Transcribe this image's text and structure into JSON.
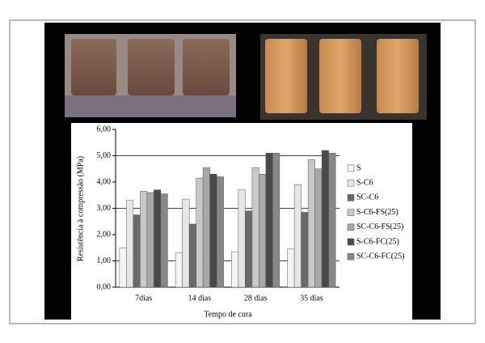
{
  "chart_data": {
    "type": "bar",
    "y_label": "Resistência à compressão (MPa)",
    "x_label": "Tempo de cura",
    "categories": [
      "7dias",
      "14 dias",
      "28 dias",
      "35 dias"
    ],
    "series": [
      {
        "name": "S",
        "color": "#f4f4f4",
        "values": [
          1.5,
          1.3,
          1.35,
          1.45
        ]
      },
      {
        "name": "S-C6",
        "color": "#e6e6e6",
        "values": [
          3.3,
          3.35,
          3.7,
          3.9
        ]
      },
      {
        "name": "SC-C6",
        "color": "#6a6a6a",
        "values": [
          2.75,
          2.4,
          2.9,
          2.85
        ]
      },
      {
        "name": "S-C6-FS(25)",
        "color": "#c8c8c8",
        "values": [
          3.65,
          4.15,
          4.55,
          4.85
        ]
      },
      {
        "name": "SC-C6-FS(25)",
        "color": "#a8a8a8",
        "values": [
          3.6,
          4.55,
          4.3,
          4.5
        ]
      },
      {
        "name": "S-C6-FC(25)",
        "color": "#4a4a4a",
        "values": [
          3.7,
          4.3,
          5.1,
          5.2
        ]
      },
      {
        "name": "SC-C6-FC(25)",
        "color": "#888888",
        "values": [
          3.55,
          4.2,
          5.1,
          5.1
        ]
      }
    ],
    "ylim": [
      0,
      6
    ],
    "yticks": [
      {
        "value": 0,
        "label": "0,00"
      },
      {
        "value": 1,
        "label": "1,00"
      },
      {
        "value": 2,
        "label": "2,00"
      },
      {
        "value": 3,
        "label": "3,00"
      },
      {
        "value": 4,
        "label": "4,00"
      },
      {
        "value": 5,
        "label": "5,00"
      },
      {
        "value": 6,
        "label": "6,00"
      }
    ],
    "gridlines": [
      1,
      3,
      5
    ],
    "legend": "right"
  }
}
